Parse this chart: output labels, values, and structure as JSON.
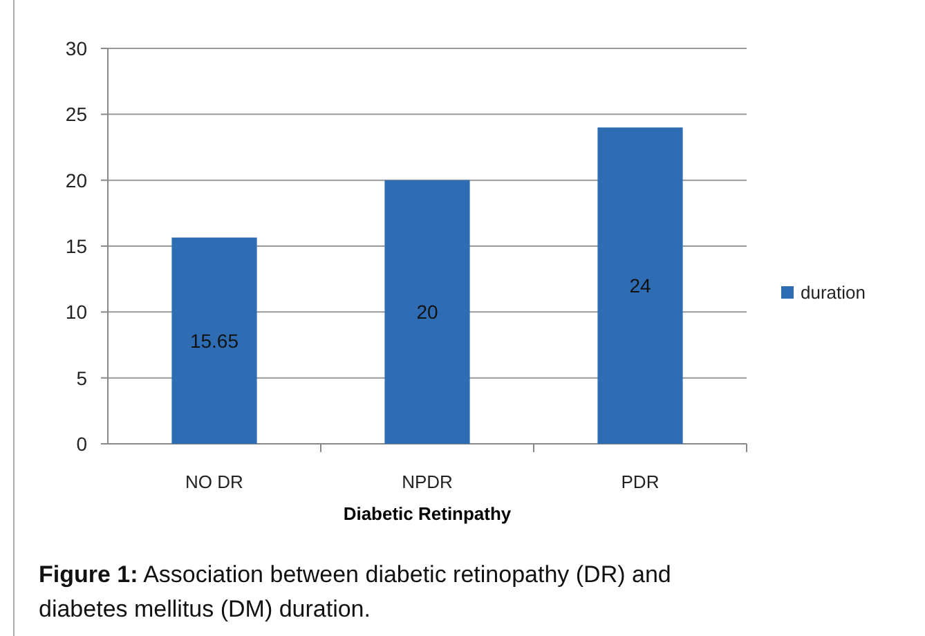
{
  "chart_data": {
    "type": "bar",
    "xlabel": "Diabetic Retinpathy",
    "categories": [
      "NO DR",
      "NPDR",
      "PDR"
    ],
    "series": [
      {
        "name": "duration",
        "color": "#2e6db4",
        "values": [
          15.65,
          20,
          24
        ]
      }
    ],
    "ylim": [
      0,
      30
    ],
    "yticks": [
      0,
      5,
      10,
      15,
      20,
      25,
      30
    ],
    "grid": "y",
    "legend": "right",
    "data_labels": true,
    "annotations": [
      "Figure 1: Association between diabetic retinopathy (DR) and diabetes mellitus (DM) duration."
    ]
  }
}
